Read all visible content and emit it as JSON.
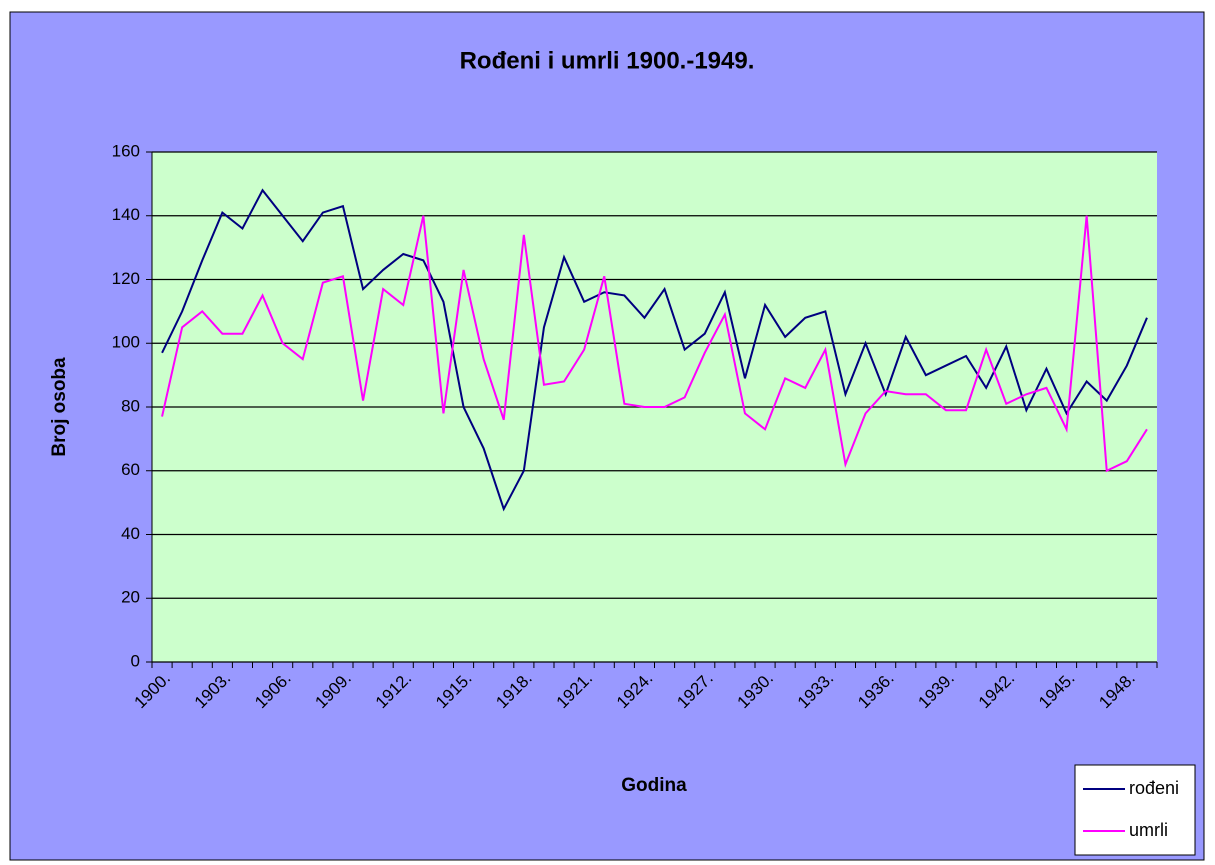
{
  "chart_data": {
    "type": "line",
    "title": "Rođeni i umrli 1900.-1949.",
    "xlabel": "Godina",
    "ylabel": "Broj osoba",
    "categories": [
      "1900.",
      null,
      null,
      "1903.",
      null,
      null,
      "1906.",
      null,
      null,
      "1909.",
      null,
      null,
      "1912.",
      null,
      null,
      "1915.",
      null,
      null,
      "1918.",
      null,
      null,
      "1921.",
      null,
      null,
      "1924.",
      null,
      null,
      "1927.",
      null,
      null,
      "1930.",
      null,
      null,
      "1933.",
      null,
      null,
      "1936.",
      null,
      null,
      "1939.",
      null,
      null,
      "1942.",
      null,
      null,
      "1945.",
      null,
      null,
      "1948.",
      null
    ],
    "series": [
      {
        "name": "rođeni",
        "color": "#000080",
        "values": [
          97,
          110,
          126,
          141,
          136,
          148,
          140,
          132,
          141,
          143,
          117,
          123,
          128,
          126,
          113,
          80,
          67,
          48,
          60,
          105,
          127,
          113,
          116,
          115,
          108,
          117,
          98,
          103,
          116,
          89,
          112,
          102,
          108,
          110,
          84,
          100,
          84,
          102,
          90,
          93,
          96,
          86,
          99,
          79,
          92,
          78,
          88,
          82,
          93,
          108
        ]
      },
      {
        "name": "umrli",
        "color": "#ff00ff",
        "values": [
          77,
          105,
          110,
          103,
          103,
          115,
          100,
          95,
          119,
          121,
          82,
          117,
          112,
          140,
          78,
          123,
          95,
          76,
          134,
          87,
          88,
          98,
          121,
          81,
          80,
          80,
          83,
          97,
          109,
          78,
          73,
          89,
          86,
          98,
          62,
          78,
          85,
          84,
          84,
          79,
          79,
          98,
          81,
          84,
          86,
          73,
          140,
          60,
          63,
          73
        ]
      }
    ],
    "ylim": [
      0,
      160
    ],
    "yticks": [
      0,
      20,
      40,
      60,
      80,
      100,
      120,
      140,
      160
    ],
    "grid": true,
    "legend": "lower right"
  }
}
